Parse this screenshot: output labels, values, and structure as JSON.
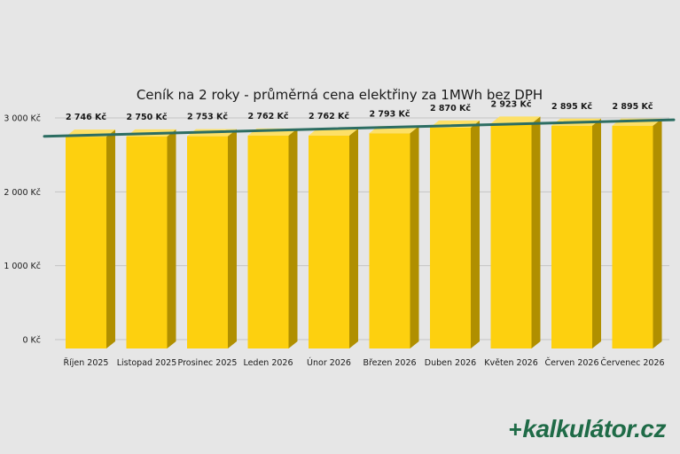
{
  "chart_data": {
    "type": "bar",
    "title": "Ceník na 2 roky - průměrná cena elektřiny za 1MWh bez DPH",
    "categories": [
      "Říjen 2025",
      "Listopad 2025",
      "Prosinec 2025",
      "Leden 2026",
      "Únor 2026",
      "Březen 2026",
      "Duben 2026",
      "Květen 2026",
      "Červen 2026",
      "Červenec 2026"
    ],
    "values": [
      2746,
      2750,
      2753,
      2762,
      2762,
      2793,
      2870,
      2923,
      2895,
      2895
    ],
    "data_labels": [
      "2 746 Kč",
      "2 750 Kč",
      "2 753 Kč",
      "2 762 Kč",
      "2 762 Kč",
      "2 793 Kč",
      "2 870 Kč",
      "2 923 Kč",
      "2 895 Kč",
      "2 895 Kč"
    ],
    "ylim": [
      0,
      3000
    ],
    "yticks": [
      0,
      1000,
      2000,
      3000
    ],
    "ytick_labels": [
      "0 Kč",
      "1 000 Kč",
      "2 000 Kč",
      "3 000 Kč"
    ],
    "trendline": "linear",
    "grid": true,
    "colors": {
      "bar_front": "#fdd00f",
      "bar_side": "#b08f00",
      "bar_top": "#fde066",
      "trendline": "#2c6d62",
      "grid": "#c4c4c4"
    }
  },
  "brand": {
    "mark": "+",
    "text": "kalkulátor.cz"
  }
}
